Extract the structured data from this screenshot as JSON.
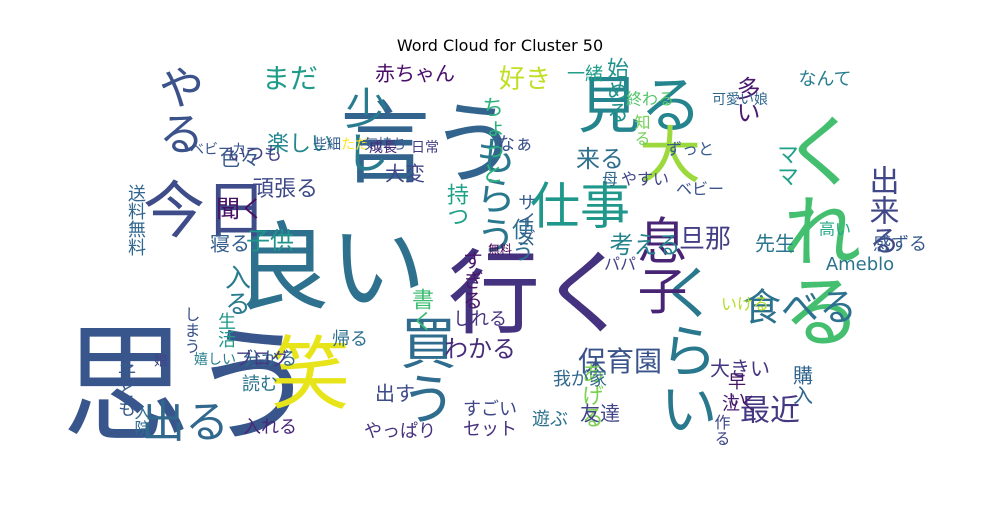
{
  "chart_data": {
    "type": "wordcloud",
    "title": "Word Cloud for Cluster 50",
    "words": [
      {
        "text": "思う",
        "color": "#39568c"
      },
      {
        "text": "良い",
        "color": "#2d718e"
      },
      {
        "text": "言う",
        "color": "#32648e"
      },
      {
        "text": "笑",
        "color": "#e7e419"
      },
      {
        "text": "行く",
        "color": "#46337f"
      },
      {
        "text": "見る",
        "color": "#25858e"
      },
      {
        "text": "今日",
        "color": "#3e4c8a"
      },
      {
        "text": "くれる",
        "color": "#44bf70"
      },
      {
        "text": "大",
        "color": "#9bd93c"
      },
      {
        "text": "食べる",
        "color": "#2c728e"
      },
      {
        "text": "くらい",
        "color": "#2a788e"
      },
      {
        "text": "仕事",
        "color": "#1f988b"
      },
      {
        "text": "息子",
        "color": "#482475"
      },
      {
        "text": "出る",
        "color": "#31688e"
      },
      {
        "text": "やる",
        "color": "#3b528b"
      },
      {
        "text": "買う",
        "color": "#2f6c8e"
      },
      {
        "text": "もらう",
        "color": "#2a788e"
      },
      {
        "text": "少し",
        "color": "#287c8e"
      },
      {
        "text": "最近",
        "color": "#453882"
      },
      {
        "text": "保育園",
        "color": "#3a538b"
      },
      {
        "text": "旦那",
        "color": "#433e85"
      },
      {
        "text": "出来る",
        "color": "#404688"
      },
      {
        "text": "まだ",
        "color": "#1e9c89"
      },
      {
        "text": "好き",
        "color": "#c2df23"
      },
      {
        "text": "考える",
        "color": "#25838e"
      },
      {
        "text": "子供",
        "color": "#1f958b"
      },
      {
        "text": "聞く",
        "color": "#471063"
      },
      {
        "text": "来る",
        "color": "#2e6f8e"
      },
      {
        "text": "わかる",
        "color": "#472c7a"
      },
      {
        "text": "入る",
        "color": "#297b8e"
      },
      {
        "text": "あげる",
        "color": "#7cd250"
      },
      {
        "text": "ちょっと",
        "color": "#2db27d"
      },
      {
        "text": "赤ちゃん",
        "color": "#4a0c6b"
      },
      {
        "text": "楽しい",
        "color": "#24868e"
      },
      {
        "text": "多い",
        "color": "#481b6d"
      },
      {
        "text": "始める",
        "color": "#21918c"
      },
      {
        "text": "書く",
        "color": "#3fbc73"
      },
      {
        "text": "Ameblo",
        "color": "#2b748e"
      },
      {
        "text": "ママ",
        "color": "#1fa088"
      },
      {
        "text": "大変",
        "color": "#404688"
      },
      {
        "text": "一緒",
        "color": "#1f9e89"
      },
      {
        "text": "持つ",
        "color": "#1fa188"
      },
      {
        "text": "使う",
        "color": "#2e6e8e"
      },
      {
        "text": "友達",
        "color": "#414487"
      },
      {
        "text": "色々",
        "color": "#38588c"
      },
      {
        "text": "頑張る",
        "color": "#3e4989"
      },
      {
        "text": "すぎる",
        "color": "#481769"
      },
      {
        "text": "寝る",
        "color": "#355f8d"
      },
      {
        "text": "やっぱり",
        "color": "#46327e"
      },
      {
        "text": "すごい",
        "color": "#3f4788"
      },
      {
        "text": "大きい",
        "color": "#453581"
      },
      {
        "text": "先生",
        "color": "#2b758e"
      },
      {
        "text": "入れる",
        "color": "#482576"
      },
      {
        "text": "セット",
        "color": "#472f7d"
      },
      {
        "text": "分かる",
        "color": "#2f6c8e"
      },
      {
        "text": "帰る",
        "color": "#2d708e"
      },
      {
        "text": "購入",
        "color": "#32658e"
      },
      {
        "text": "遊ぶ",
        "color": "#2c718e"
      },
      {
        "text": "なんて",
        "color": "#287d8e"
      },
      {
        "text": "なぁ",
        "color": "#3b518b"
      },
      {
        "text": "しれる",
        "color": "#46337f"
      },
      {
        "text": "出す",
        "color": "#3e4a89"
      },
      {
        "text": "読む",
        "color": "#2b758e"
      },
      {
        "text": "ブログ",
        "color": "#443a83"
      },
      {
        "text": "送料無料",
        "color": "#31668e"
      },
      {
        "text": "子ども",
        "color": "#375a8c"
      },
      {
        "text": "いつも",
        "color": "#424086"
      },
      {
        "text": "生活",
        "color": "#1f9a8a"
      },
      {
        "text": "サイズ",
        "color": "#355e8d"
      },
      {
        "text": "早い",
        "color": "#471365"
      },
      {
        "text": "泣く",
        "color": "#481c6e"
      },
      {
        "text": "我が家",
        "color": "#31688e"
      },
      {
        "text": "感ずる",
        "color": "#38598c"
      },
      {
        "text": "ずっと",
        "color": "#375a8c"
      },
      {
        "text": "作る",
        "color": "#3f4889"
      },
      {
        "text": "知る",
        "color": "#73d056"
      },
      {
        "text": "高い",
        "color": "#23a983"
      },
      {
        "text": "ベビー",
        "color": "#3b528b"
      },
      {
        "text": "いける",
        "color": "#b5de2b"
      },
      {
        "text": "やすい",
        "color": "#404588"
      },
      {
        "text": "終わる",
        "color": "#52c569"
      },
      {
        "text": "母",
        "color": "#31688e"
      },
      {
        "text": "パパ",
        "color": "#424086"
      },
      {
        "text": "しまう",
        "color": "#3a538b"
      },
      {
        "text": "入院",
        "color": "#2f6b8e"
      },
      {
        "text": "可愛い娘",
        "color": "#31688e"
      },
      {
        "text": "ただ",
        "color": "#fde725"
      },
      {
        "text": "気持ち",
        "color": "#3a548c"
      },
      {
        "text": "些細",
        "color": "#355f8d"
      },
      {
        "text": "成長",
        "color": "#482878"
      },
      {
        "text": "日常",
        "color": "#433d84"
      },
      {
        "text": "嬉しい",
        "color": "#27808e"
      },
      {
        "text": "ベビーカー",
        "color": "#3a538b"
      },
      {
        "text": "娘",
        "color": "#414487"
      },
      {
        "text": "無料",
        "color": "#440154"
      }
    ]
  }
}
